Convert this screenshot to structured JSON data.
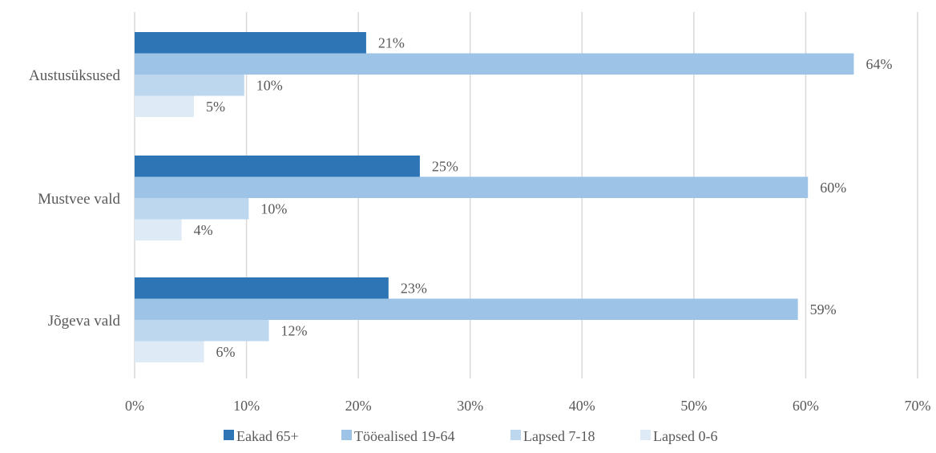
{
  "chart_data": {
    "type": "bar",
    "orientation": "horizontal",
    "categories": [
      "Austusüksused",
      "Mustvee vald",
      "Jõgeva vald"
    ],
    "series": [
      {
        "name": "Eakad 65+",
        "values": [
          20.7,
          25.5,
          22.7
        ],
        "labels": [
          "21%",
          "25%",
          "23%"
        ],
        "color": "#2e75b6"
      },
      {
        "name": "Tööealised 19-64",
        "values": [
          64.3,
          60.2,
          59.3
        ],
        "labels": [
          "64%",
          "60%",
          "59%"
        ],
        "color": "#9dc3e6"
      },
      {
        "name": "Lapsed 7-18",
        "values": [
          9.8,
          10.2,
          12.0
        ],
        "labels": [
          "10%",
          "10%",
          "12%"
        ],
        "color": "#bdd7ee"
      },
      {
        "name": "Lapsed 0-6",
        "values": [
          5.3,
          4.2,
          6.2
        ],
        "labels": [
          "5%",
          "4%",
          "6%"
        ],
        "color": "#deebf7"
      }
    ],
    "xlim": [
      0,
      70
    ],
    "xticks": [
      0,
      10,
      20,
      30,
      40,
      50,
      60,
      70
    ],
    "xtick_labels": [
      "0%",
      "10%",
      "20%",
      "30%",
      "40%",
      "50%",
      "60%",
      "70%"
    ],
    "grid": true,
    "legend_position": "bottom",
    "title": "",
    "xlabel": "",
    "ylabel": ""
  }
}
